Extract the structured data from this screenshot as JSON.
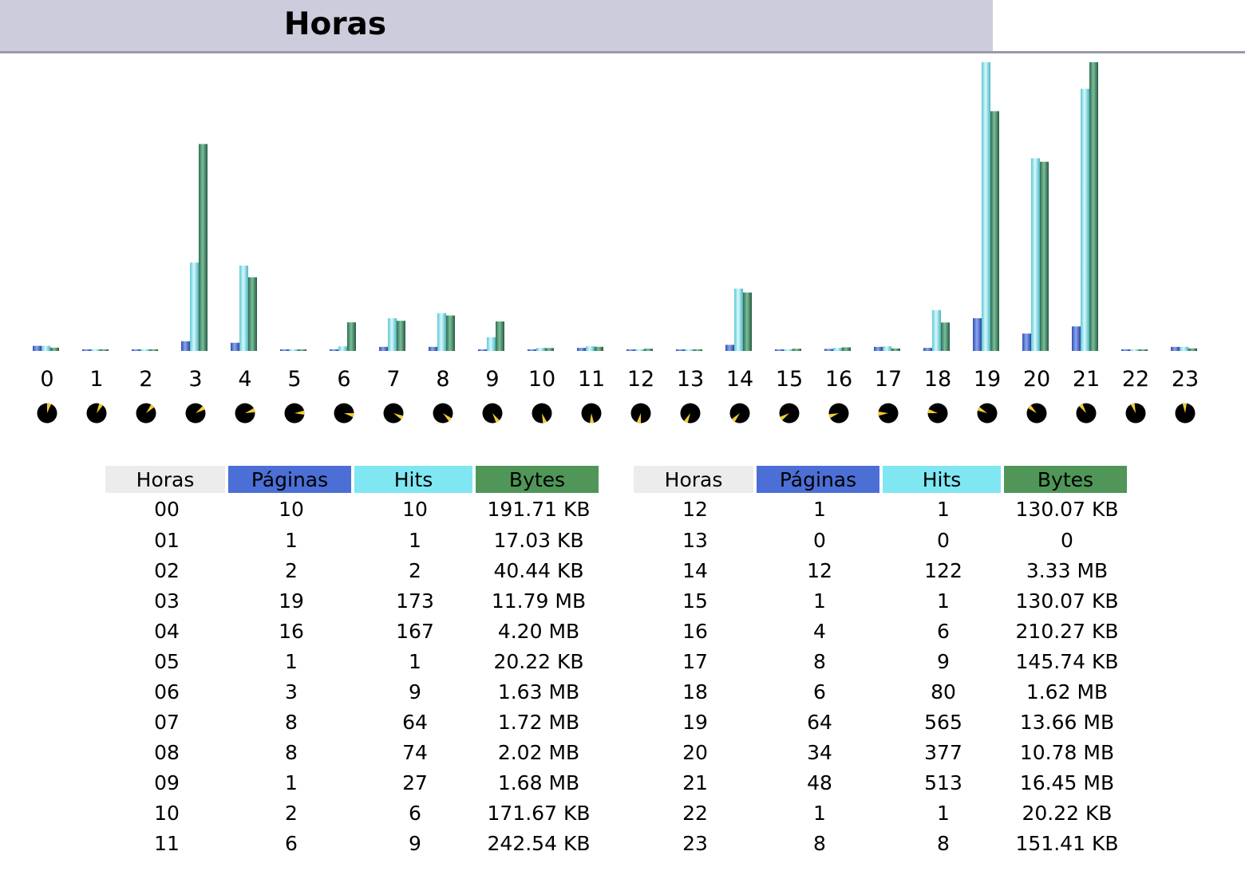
{
  "header": {
    "title": "Horas"
  },
  "colors": {
    "paginas": "#4c6fd6",
    "hits": "#80e6f2",
    "bytes": "#4f9658",
    "header_bg": "#ccccdd",
    "horas_header_bg": "#ececec",
    "pie_bg": "#000000",
    "pie_slice": "#f2cc33"
  },
  "chart_data": {
    "type": "bar",
    "categories": [
      "0",
      "1",
      "2",
      "3",
      "4",
      "5",
      "6",
      "7",
      "8",
      "9",
      "10",
      "11",
      "12",
      "13",
      "14",
      "15",
      "16",
      "17",
      "18",
      "19",
      "20",
      "21",
      "22",
      "23"
    ],
    "series": [
      {
        "name": "Páginas",
        "values": [
          10,
          1,
          2,
          19,
          16,
          1,
          3,
          8,
          8,
          1,
          2,
          6,
          1,
          0,
          12,
          1,
          4,
          8,
          6,
          64,
          34,
          48,
          1,
          8
        ]
      },
      {
        "name": "Hits",
        "values": [
          10,
          1,
          2,
          173,
          167,
          1,
          9,
          64,
          74,
          27,
          6,
          9,
          1,
          0,
          122,
          1,
          6,
          9,
          80,
          565,
          377,
          513,
          1,
          8
        ]
      },
      {
        "name": "Bytes",
        "values": [
          191.71,
          17.03,
          40.44,
          12073,
          4300,
          20.22,
          1669,
          1761,
          2068,
          1720,
          171.67,
          242.54,
          130.07,
          0,
          3410,
          130.07,
          210.27,
          145.74,
          1659,
          13988,
          11039,
          16845,
          20.22,
          151.41
        ],
        "unit": "KB"
      }
    ],
    "pies": "hour-of-day clock indicators"
  },
  "table": {
    "headers": {
      "horas": "Horas",
      "paginas": "Páginas",
      "hits": "Hits",
      "bytes": "Bytes"
    },
    "left_rows": [
      [
        "00",
        "10",
        "10",
        "191.71 KB"
      ],
      [
        "01",
        "1",
        "1",
        "17.03 KB"
      ],
      [
        "02",
        "2",
        "2",
        "40.44 KB"
      ],
      [
        "03",
        "19",
        "173",
        "11.79 MB"
      ],
      [
        "04",
        "16",
        "167",
        "4.20 MB"
      ],
      [
        "05",
        "1",
        "1",
        "20.22 KB"
      ],
      [
        "06",
        "3",
        "9",
        "1.63 MB"
      ],
      [
        "07",
        "8",
        "64",
        "1.72 MB"
      ],
      [
        "08",
        "8",
        "74",
        "2.02 MB"
      ],
      [
        "09",
        "1",
        "27",
        "1.68 MB"
      ],
      [
        "10",
        "2",
        "6",
        "171.67 KB"
      ],
      [
        "11",
        "6",
        "9",
        "242.54 KB"
      ]
    ],
    "right_rows": [
      [
        "12",
        "1",
        "1",
        "130.07 KB"
      ],
      [
        "13",
        "0",
        "0",
        "0"
      ],
      [
        "14",
        "12",
        "122",
        "3.33 MB"
      ],
      [
        "15",
        "1",
        "1",
        "130.07 KB"
      ],
      [
        "16",
        "4",
        "6",
        "210.27 KB"
      ],
      [
        "17",
        "8",
        "9",
        "145.74 KB"
      ],
      [
        "18",
        "6",
        "80",
        "1.62 MB"
      ],
      [
        "19",
        "64",
        "565",
        "13.66 MB"
      ],
      [
        "20",
        "34",
        "377",
        "10.78 MB"
      ],
      [
        "21",
        "48",
        "513",
        "16.45 MB"
      ],
      [
        "22",
        "1",
        "1",
        "20.22 KB"
      ],
      [
        "23",
        "8",
        "8",
        "151.41 KB"
      ]
    ]
  }
}
